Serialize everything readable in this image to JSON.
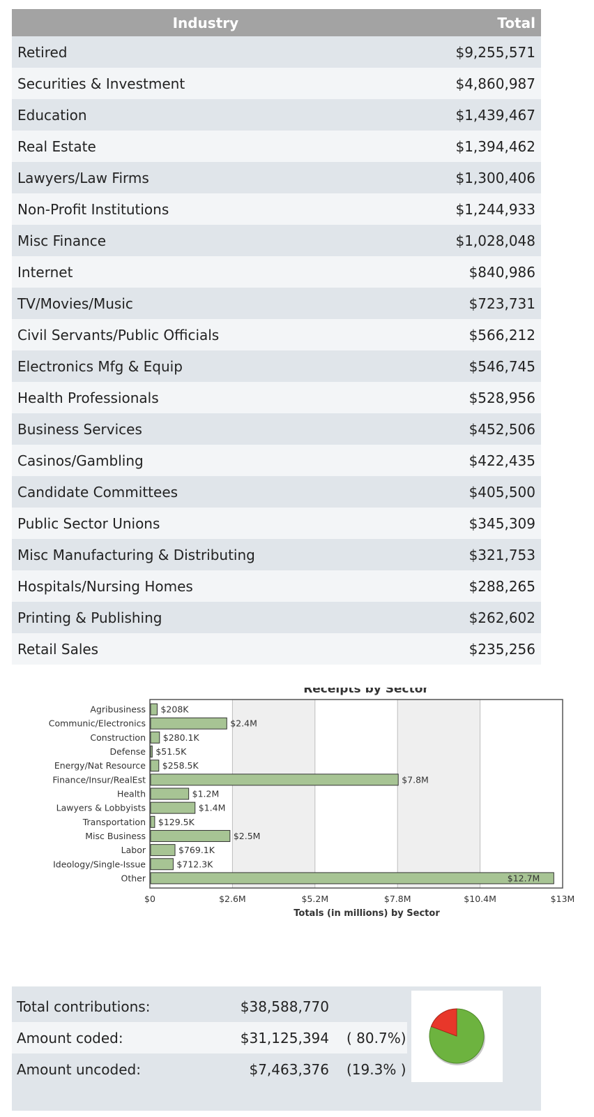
{
  "table": {
    "headers": {
      "industry": "Industry",
      "total": "Total"
    },
    "rows": [
      {
        "industry": "Retired",
        "total": "$9,255,571"
      },
      {
        "industry": "Securities & Investment",
        "total": "$4,860,987"
      },
      {
        "industry": "Education",
        "total": "$1,439,467"
      },
      {
        "industry": "Real Estate",
        "total": "$1,394,462"
      },
      {
        "industry": "Lawyers/Law Firms",
        "total": "$1,300,406"
      },
      {
        "industry": "Non-Profit Institutions",
        "total": "$1,244,933"
      },
      {
        "industry": "Misc Finance",
        "total": "$1,028,048"
      },
      {
        "industry": "Internet",
        "total": "$840,986"
      },
      {
        "industry": "TV/Movies/Music",
        "total": "$723,731"
      },
      {
        "industry": "Civil Servants/Public Officials",
        "total": "$566,212"
      },
      {
        "industry": "Electronics Mfg & Equip",
        "total": "$546,745"
      },
      {
        "industry": "Health Professionals",
        "total": "$528,956"
      },
      {
        "industry": "Business Services",
        "total": "$452,506"
      },
      {
        "industry": "Casinos/Gambling",
        "total": "$422,435"
      },
      {
        "industry": "Candidate Committees",
        "total": "$405,500"
      },
      {
        "industry": "Public Sector Unions",
        "total": "$345,309"
      },
      {
        "industry": "Misc Manufacturing & Distributing",
        "total": "$321,753"
      },
      {
        "industry": "Hospitals/Nursing Homes",
        "total": "$288,265"
      },
      {
        "industry": "Printing & Publishing",
        "total": "$262,602"
      },
      {
        "industry": "Retail Sales",
        "total": "$235,256"
      }
    ]
  },
  "chart_data": {
    "type": "bar",
    "orientation": "horizontal",
    "title": "Receipts by Sector",
    "xlabel": "Totals (in millions) by Sector",
    "ylabel": "",
    "xlim": [
      0,
      13
    ],
    "x_ticks": [
      {
        "value": 0,
        "label": "$0"
      },
      {
        "value": 2.6,
        "label": "$2.6M"
      },
      {
        "value": 5.2,
        "label": "$5.2M"
      },
      {
        "value": 7.8,
        "label": "$7.8M"
      },
      {
        "value": 10.4,
        "label": "$10.4M"
      },
      {
        "value": 13,
        "label": "$13M"
      }
    ],
    "grid": true,
    "bar_color": "#a7c494",
    "categories": [
      "Agribusiness",
      "Communic/Electronics",
      "Construction",
      "Defense",
      "Energy/Nat Resource",
      "Finance/Insur/RealEst",
      "Health",
      "Lawyers & Lobbyists",
      "Transportation",
      "Misc Business",
      "Labor",
      "Ideology/Single-Issue",
      "Other"
    ],
    "values": [
      0.208,
      2.4,
      0.2801,
      0.0515,
      0.2585,
      7.8,
      1.2,
      1.4,
      0.1295,
      2.5,
      0.7691,
      0.7123,
      12.7
    ],
    "value_labels": [
      "$208K",
      "$2.4M",
      "$280.1K",
      "$51.5K",
      "$258.5K",
      "$7.8M",
      "$1.2M",
      "$1.4M",
      "$129.5K",
      "$2.5M",
      "$769.1K",
      "$712.3K",
      "$12.7M"
    ]
  },
  "summary": {
    "total_label": "Total contributions:",
    "total_value": "$38,588,770",
    "coded_label": "Amount coded:",
    "coded_value": "$31,125,394",
    "coded_pct": "( 80.7%)",
    "uncoded_label": "Amount uncoded:",
    "uncoded_value": "$7,463,376",
    "uncoded_pct": "(19.3% )",
    "pie": {
      "coded_fraction": 0.807,
      "uncoded_fraction": 0.193,
      "coded_color": "#6db33f",
      "uncoded_color": "#e8372a"
    }
  }
}
